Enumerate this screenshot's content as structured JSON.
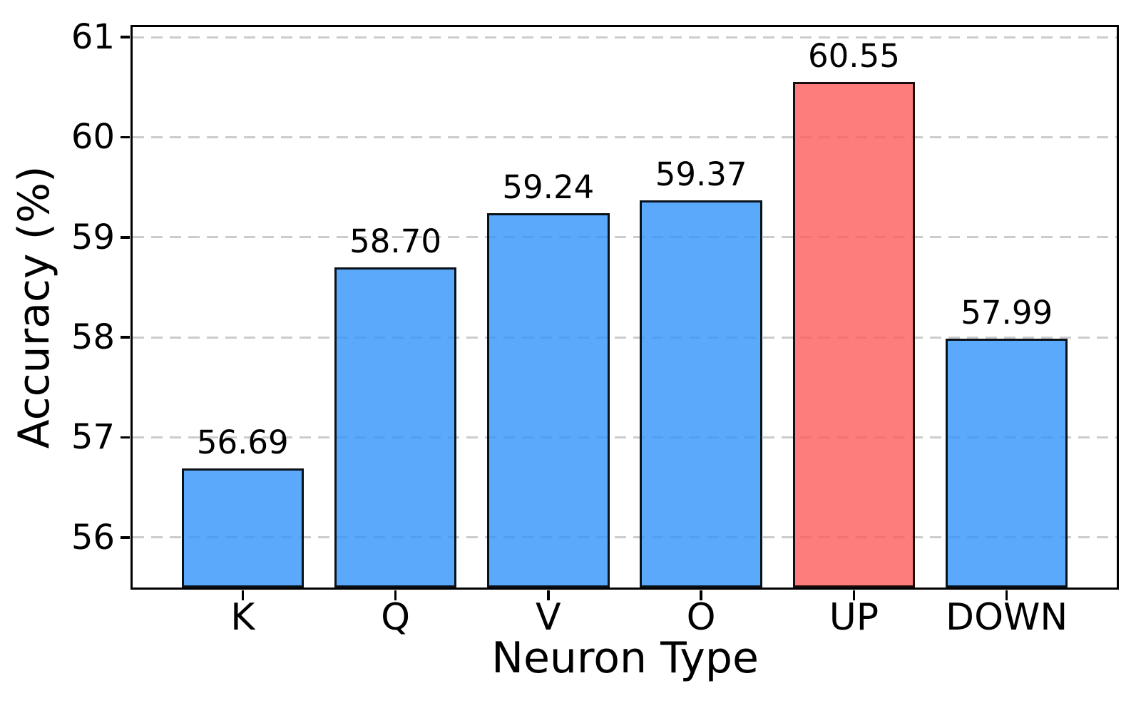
{
  "chart_data": {
    "type": "bar",
    "title": "",
    "xlabel": "Neuron Type",
    "ylabel": "Accuracy (%)",
    "categories": [
      "K",
      "Q",
      "V",
      "O",
      "UP",
      "DOWN"
    ],
    "values": [
      56.69,
      58.7,
      59.24,
      59.37,
      60.55,
      57.99
    ],
    "value_labels": [
      "56.69",
      "58.70",
      "59.24",
      "59.37",
      "60.55",
      "57.99"
    ],
    "highlight_index": 4,
    "ylim": [
      55.5,
      61.1
    ],
    "yticks": [
      "56",
      "57",
      "58",
      "59",
      "60",
      "61"
    ],
    "grid": {
      "axis": "y",
      "style": "dashed",
      "color": "#cccccc"
    },
    "legend": null,
    "colors": {
      "bar_default": "rgba(50,148,249,0.8)",
      "bar_highlight": "rgba(251,93,90,0.8)",
      "bar_edge": "rgba(0,0,0,0.9)",
      "axis": "#000000",
      "grid_line": "#cccccc",
      "text": "#000000",
      "background": "#ffffff"
    }
  }
}
